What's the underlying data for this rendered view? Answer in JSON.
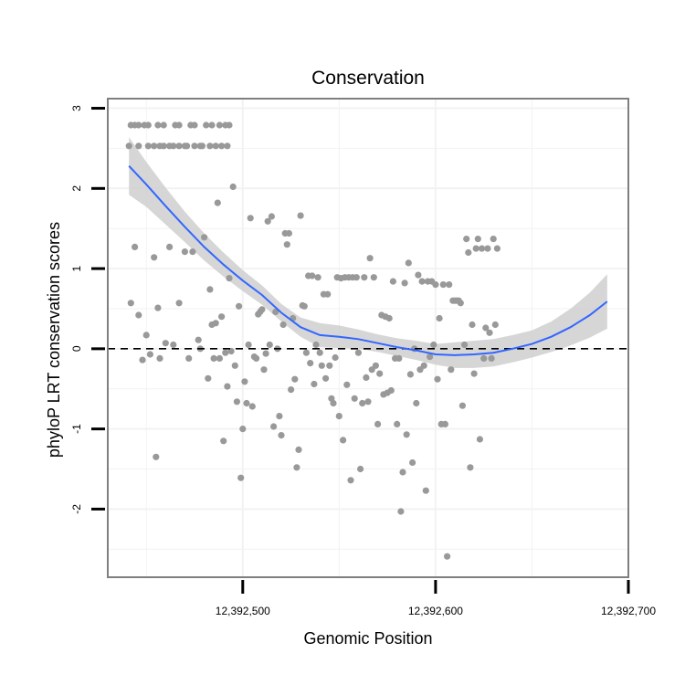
{
  "chart_data": {
    "type": "scatter",
    "title": "Conservation",
    "xlabel": "Genomic Position",
    "ylabel": "phyloP LRT conservation scores",
    "xlim": [
      12392430,
      12392700
    ],
    "ylim": [
      -2.85,
      3.12
    ],
    "x_ticks": [
      {
        "value": 12392500,
        "label": "12,392,500"
      },
      {
        "value": 12392600,
        "label": "12,392,600"
      },
      {
        "value": 12392700,
        "label": "12,392,700"
      }
    ],
    "y_ticks": [
      {
        "value": -2,
        "label": "-2"
      },
      {
        "value": -1,
        "label": "-1"
      },
      {
        "value": 0,
        "label": "0"
      },
      {
        "value": 1,
        "label": "1"
      },
      {
        "value": 2,
        "label": "2"
      },
      {
        "value": 3,
        "label": "3"
      }
    ],
    "grid": true,
    "reference_line": {
      "y": 0,
      "style": "dashed"
    },
    "colors": {
      "points": "#999999",
      "smooth": "#3366ff",
      "band": "#cccccc",
      "border": "#7f7f7f",
      "grid": "#f2f2f2"
    },
    "smooth": {
      "x": [
        12392441,
        12392450,
        12392460,
        12392470,
        12392480,
        12392490,
        12392500,
        12392510,
        12392520,
        12392530,
        12392540,
        12392550,
        12392560,
        12392570,
        12392580,
        12392590,
        12392600,
        12392610,
        12392620,
        12392630,
        12392640,
        12392650,
        12392660,
        12392670,
        12392680,
        12392689
      ],
      "y": [
        2.28,
        2.05,
        1.78,
        1.52,
        1.27,
        1.05,
        0.85,
        0.67,
        0.45,
        0.27,
        0.17,
        0.15,
        0.12,
        0.07,
        0.02,
        -0.02,
        -0.07,
        -0.08,
        -0.07,
        -0.05,
        0.0,
        0.06,
        0.15,
        0.27,
        0.42,
        0.59
      ],
      "lower": [
        1.92,
        1.77,
        1.55,
        1.33,
        1.1,
        0.9,
        0.72,
        0.55,
        0.34,
        0.15,
        0.02,
        0.01,
        0.0,
        -0.04,
        -0.09,
        -0.14,
        -0.2,
        -0.24,
        -0.24,
        -0.22,
        -0.17,
        -0.11,
        -0.04,
        0.04,
        0.14,
        0.25
      ],
      "upper": [
        2.64,
        2.33,
        2.01,
        1.71,
        1.44,
        1.2,
        0.98,
        0.79,
        0.56,
        0.39,
        0.32,
        0.29,
        0.24,
        0.18,
        0.13,
        0.1,
        0.06,
        0.08,
        0.1,
        0.12,
        0.17,
        0.23,
        0.34,
        0.5,
        0.7,
        0.93
      ]
    },
    "points": [
      [
        12392441,
        2.53
      ],
      [
        12392442,
        2.79
      ],
      [
        12392444,
        2.79
      ],
      [
        12392446,
        2.53
      ],
      [
        12392446,
        2.79
      ],
      [
        12392449,
        2.79
      ],
      [
        12392451,
        2.53
      ],
      [
        12392451,
        2.79
      ],
      [
        12392454,
        2.53
      ],
      [
        12392456,
        2.79
      ],
      [
        12392457,
        2.53
      ],
      [
        12392459,
        2.53
      ],
      [
        12392459,
        2.79
      ],
      [
        12392462,
        2.53
      ],
      [
        12392464,
        2.53
      ],
      [
        12392465,
        2.79
      ],
      [
        12392467,
        2.53
      ],
      [
        12392467,
        2.79
      ],
      [
        12392470,
        2.53
      ],
      [
        12392471,
        2.53
      ],
      [
        12392473,
        2.79
      ],
      [
        12392475,
        2.53
      ],
      [
        12392475,
        2.79
      ],
      [
        12392478,
        2.53
      ],
      [
        12392479,
        2.53
      ],
      [
        12392481,
        2.79
      ],
      [
        12392483,
        2.53
      ],
      [
        12392484,
        2.79
      ],
      [
        12392486,
        2.53
      ],
      [
        12392488,
        2.79
      ],
      [
        12392489,
        2.53
      ],
      [
        12392491,
        2.79
      ],
      [
        12392492,
        2.53
      ],
      [
        12392493,
        2.79
      ],
      [
        12392442,
        0.57
      ],
      [
        12392444,
        1.27
      ],
      [
        12392446,
        0.42
      ],
      [
        12392448,
        -0.14
      ],
      [
        12392450,
        0.17
      ],
      [
        12392452,
        -0.07
      ],
      [
        12392454,
        1.14
      ],
      [
        12392455,
        -1.35
      ],
      [
        12392456,
        0.51
      ],
      [
        12392457,
        -0.12
      ],
      [
        12392460,
        0.07
      ],
      [
        12392462,
        1.27
      ],
      [
        12392464,
        0.05
      ],
      [
        12392467,
        0.57
      ],
      [
        12392470,
        1.21
      ],
      [
        12392472,
        -0.12
      ],
      [
        12392474,
        1.21
      ],
      [
        12392477,
        0.11
      ],
      [
        12392478,
        0.0
      ],
      [
        12392480,
        1.39
      ],
      [
        12392482,
        -0.37
      ],
      [
        12392483,
        0.74
      ],
      [
        12392484,
        0.3
      ],
      [
        12392485,
        -0.12
      ],
      [
        12392486,
        0.32
      ],
      [
        12392487,
        1.82
      ],
      [
        12392488,
        -0.12
      ],
      [
        12392489,
        0.4
      ],
      [
        12392490,
        -1.15
      ],
      [
        12392491,
        -0.05
      ],
      [
        12392492,
        -0.47
      ],
      [
        12392493,
        0.88
      ],
      [
        12392494,
        -0.03
      ],
      [
        12392495,
        2.02
      ],
      [
        12392496,
        -0.21
      ],
      [
        12392497,
        -0.66
      ],
      [
        12392498,
        0.53
      ],
      [
        12392499,
        -1.61
      ],
      [
        12392500,
        -1.0
      ],
      [
        12392501,
        -0.41
      ],
      [
        12392502,
        -0.68
      ],
      [
        12392503,
        0.05
      ],
      [
        12392504,
        1.63
      ],
      [
        12392505,
        -0.72
      ],
      [
        12392506,
        -0.1
      ],
      [
        12392507,
        -0.12
      ],
      [
        12392508,
        0.43
      ],
      [
        12392509,
        0.46
      ],
      [
        12392510,
        0.49
      ],
      [
        12392511,
        -0.26
      ],
      [
        12392512,
        -0.06
      ],
      [
        12392513,
        1.59
      ],
      [
        12392514,
        0.05
      ],
      [
        12392515,
        1.65
      ],
      [
        12392516,
        -0.97
      ],
      [
        12392517,
        0.46
      ],
      [
        12392518,
        0.0
      ],
      [
        12392519,
        -0.84
      ],
      [
        12392520,
        -1.08
      ],
      [
        12392521,
        0.3
      ],
      [
        12392522,
        1.44
      ],
      [
        12392523,
        1.3
      ],
      [
        12392524,
        1.44
      ],
      [
        12392525,
        -0.51
      ],
      [
        12392526,
        0.38
      ],
      [
        12392527,
        -0.38
      ],
      [
        12392528,
        -1.48
      ],
      [
        12392529,
        -1.26
      ],
      [
        12392530,
        1.66
      ],
      [
        12392531,
        0.54
      ],
      [
        12392532,
        0.53
      ],
      [
        12392533,
        -0.05
      ],
      [
        12392534,
        0.91
      ],
      [
        12392535,
        -0.18
      ],
      [
        12392536,
        0.91
      ],
      [
        12392537,
        -0.44
      ],
      [
        12392538,
        0.05
      ],
      [
        12392539,
        0.89
      ],
      [
        12392540,
        -0.05
      ],
      [
        12392541,
        -0.21
      ],
      [
        12392542,
        0.68
      ],
      [
        12392543,
        -0.37
      ],
      [
        12392544,
        0.68
      ],
      [
        12392545,
        -0.21
      ],
      [
        12392546,
        -0.62
      ],
      [
        12392547,
        -0.68
      ],
      [
        12392548,
        -0.11
      ],
      [
        12392549,
        0.89
      ],
      [
        12392550,
        -0.84
      ],
      [
        12392551,
        0.88
      ],
      [
        12392552,
        -1.14
      ],
      [
        12392553,
        0.89
      ],
      [
        12392554,
        -0.45
      ],
      [
        12392555,
        0.89
      ],
      [
        12392556,
        -1.64
      ],
      [
        12392557,
        0.89
      ],
      [
        12392558,
        -0.62
      ],
      [
        12392559,
        0.89
      ],
      [
        12392560,
        -0.05
      ],
      [
        12392561,
        -1.5
      ],
      [
        12392562,
        -0.68
      ],
      [
        12392563,
        0.89
      ],
      [
        12392564,
        -0.36
      ],
      [
        12392565,
        -0.66
      ],
      [
        12392566,
        1.13
      ],
      [
        12392567,
        -0.26
      ],
      [
        12392568,
        0.89
      ],
      [
        12392569,
        -0.21
      ],
      [
        12392570,
        -0.94
      ],
      [
        12392571,
        -0.31
      ],
      [
        12392572,
        0.42
      ],
      [
        12392573,
        -0.57
      ],
      [
        12392574,
        0.4
      ],
      [
        12392575,
        -0.55
      ],
      [
        12392576,
        0.38
      ],
      [
        12392577,
        -0.52
      ],
      [
        12392578,
        0.84
      ],
      [
        12392579,
        -0.12
      ],
      [
        12392580,
        -0.94
      ],
      [
        12392581,
        -0.12
      ],
      [
        12392582,
        -2.03
      ],
      [
        12392583,
        -1.54
      ],
      [
        12392584,
        0.82
      ],
      [
        12392585,
        -1.07
      ],
      [
        12392586,
        1.07
      ],
      [
        12392587,
        -0.32
      ],
      [
        12392588,
        -1.42
      ],
      [
        12392589,
        0.0
      ],
      [
        12392590,
        -0.68
      ],
      [
        12392591,
        0.92
      ],
      [
        12392592,
        -0.26
      ],
      [
        12392593,
        0.84
      ],
      [
        12392594,
        -0.21
      ],
      [
        12392595,
        -1.77
      ],
      [
        12392596,
        0.84
      ],
      [
        12392597,
        -0.1
      ],
      [
        12392598,
        0.84
      ],
      [
        12392599,
        0.05
      ],
      [
        12392600,
        0.8
      ],
      [
        12392601,
        -0.38
      ],
      [
        12392602,
        0.38
      ],
      [
        12392603,
        -0.94
      ],
      [
        12392604,
        0.8
      ],
      [
        12392605,
        -0.94
      ],
      [
        12392606,
        -2.59
      ],
      [
        12392607,
        0.8
      ],
      [
        12392608,
        -0.26
      ],
      [
        12392609,
        0.6
      ],
      [
        12392610,
        0.6
      ],
      [
        12392611,
        0.6
      ],
      [
        12392612,
        0.6
      ],
      [
        12392613,
        0.57
      ],
      [
        12392614,
        -0.71
      ],
      [
        12392615,
        0.05
      ],
      [
        12392616,
        1.37
      ],
      [
        12392617,
        1.2
      ],
      [
        12392618,
        -1.48
      ],
      [
        12392619,
        0.3
      ],
      [
        12392620,
        -0.31
      ],
      [
        12392621,
        1.25
      ],
      [
        12392622,
        1.37
      ],
      [
        12392623,
        -1.13
      ],
      [
        12392624,
        1.25
      ],
      [
        12392625,
        -0.12
      ],
      [
        12392626,
        0.26
      ],
      [
        12392627,
        1.25
      ],
      [
        12392628,
        0.2
      ],
      [
        12392629,
        -0.12
      ],
      [
        12392630,
        1.37
      ],
      [
        12392631,
        0.3
      ],
      [
        12392632,
        1.25
      ]
    ]
  }
}
